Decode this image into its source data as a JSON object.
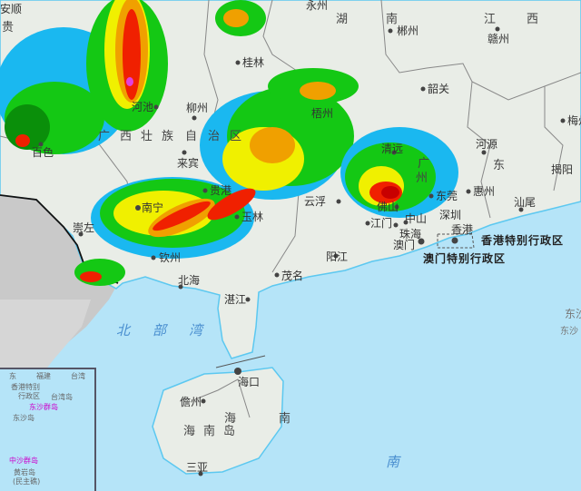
{
  "map": {
    "colors": {
      "sea": "#b5e4f8",
      "land": "#e9ede7",
      "foreign": "#c9c9c9",
      "coast": "#5cc8f0",
      "border": "#777777",
      "radar_levels": [
        "#1ab8f0",
        "#14c814",
        "#0a8f0a",
        "#f0f000",
        "#f0a000",
        "#f02000",
        "#c80000",
        "#e040e0"
      ]
    },
    "labels": [
      "永州",
      "湖",
      "南",
      "郴州",
      "江",
      "西",
      "赣州",
      "安顺",
      "贵",
      "桂林",
      "韶关",
      "梅州",
      "河池",
      "柳州",
      "百色",
      "广",
      "西",
      "壮",
      "族",
      "自",
      "治",
      "区",
      "来宾",
      "贵港",
      "梧州",
      "清远",
      "广",
      "州",
      "河源",
      "东",
      "揭阳",
      "惠州",
      "东莞",
      "汕尾",
      "崇左",
      "南宁",
      "玉林",
      "云浮",
      "佛山",
      "深圳",
      "中山",
      "江门",
      "珠海",
      "香港",
      "澳门",
      "阳江",
      "茂名",
      "钦州",
      "北海",
      "湛江",
      "北",
      "部",
      "湾",
      "海口",
      "儋州",
      "海",
      "海",
      "南",
      "岛",
      "南",
      "三亚",
      "南",
      "东沙",
      "东沙"
    ],
    "sar_labels": {
      "hongkong": "香港特别行政区",
      "macau": "澳门特别行政区"
    },
    "inset": {
      "labels": [
        "东",
        "福建",
        "台湾",
        "香港特别",
        "行政区",
        "台湾岛",
        "东沙群岛",
        "东沙岛",
        "中沙群岛",
        "黄岩岛",
        "(民主礁)"
      ]
    }
  }
}
